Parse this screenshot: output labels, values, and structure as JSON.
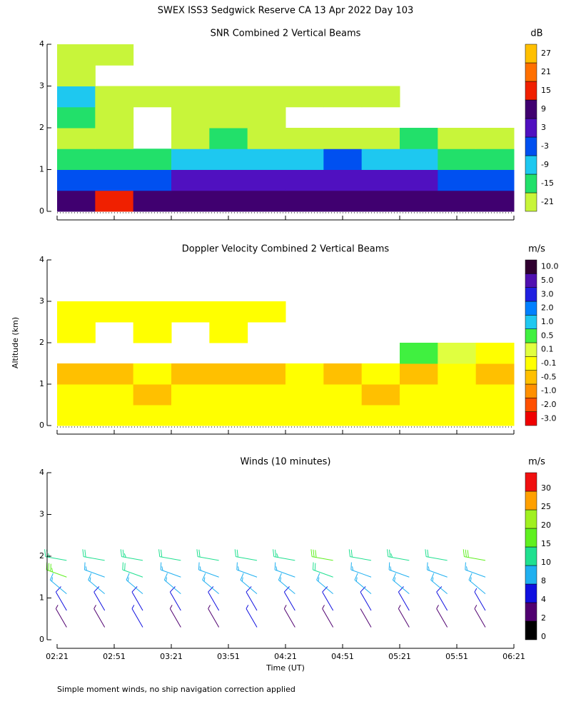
{
  "title": "SWEX ISS3 Sedgwick Reserve CA  13 Apr 2022 Day 103",
  "y_axis_label": "Altitude (km)",
  "footnote": "Simple moment winds, no ship navigation correction applied",
  "chart_data": [
    {
      "type": "heatmap",
      "title": "SNR Combined 2 Vertical Beams",
      "xlim": [
        0,
        240
      ],
      "xticks": [
        0,
        30,
        60,
        90,
        120,
        150,
        180,
        210,
        240
      ],
      "ylim": [
        0,
        4
      ],
      "yticks": [
        0,
        1,
        2,
        3,
        4
      ],
      "x": [
        10,
        30,
        50,
        70,
        90,
        110,
        130,
        150,
        170,
        190,
        210,
        230
      ],
      "y": [
        0.25,
        0.75,
        1.25,
        1.75,
        2.25,
        2.75,
        3.25,
        3.75
      ],
      "z": [
        [
          12,
          18,
          9,
          12,
          9,
          9,
          9,
          9,
          9,
          9,
          9,
          9
        ],
        [
          -3,
          -3,
          -3,
          3,
          3,
          3,
          3,
          3,
          3,
          3,
          -3,
          -3
        ],
        [
          -15,
          -15,
          -15,
          -9,
          -9,
          -9,
          -9,
          -3,
          -9,
          -9,
          -15,
          -15
        ],
        [
          -21,
          -21,
          null,
          -21,
          -15,
          -21,
          -21,
          -21,
          -21,
          -15,
          -21,
          -21
        ],
        [
          -15,
          -21,
          null,
          -21,
          -21,
          -21,
          null,
          null,
          null,
          null,
          null,
          null
        ],
        [
          -9,
          -21,
          -21,
          -21,
          -21,
          -21,
          -21,
          -21,
          -21,
          null,
          null,
          null
        ],
        [
          -21,
          null,
          null,
          null,
          null,
          null,
          null,
          null,
          null,
          null,
          null,
          null
        ],
        [
          -21,
          -21,
          null,
          null,
          null,
          null,
          null,
          null,
          null,
          null,
          null,
          null
        ]
      ],
      "colorbar": {
        "unit": "dB",
        "label_position": "center",
        "levels": [
          -21,
          -15,
          -9,
          -3,
          3,
          9,
          15,
          21,
          27
        ],
        "colors": [
          "#c8f53a",
          "#22e06a",
          "#1ec8f0",
          "#0050f0",
          "#5010c0",
          "#400070",
          "#f02000",
          "#ff7000",
          "#ffc000"
        ]
      }
    },
    {
      "type": "heatmap",
      "title": "Doppler Velocity Combined 2 Vertical Beams",
      "xlim": [
        0,
        240
      ],
      "xticks": [
        0,
        30,
        60,
        90,
        120,
        150,
        180,
        210,
        240
      ],
      "ylim": [
        0,
        4
      ],
      "yticks": [
        0,
        1,
        2,
        3,
        4
      ],
      "x": [
        10,
        30,
        50,
        70,
        90,
        110,
        130,
        150,
        170,
        190,
        210,
        230
      ],
      "y": [
        0.25,
        0.75,
        1.25,
        1.75,
        2.25,
        2.75,
        3.25,
        3.75
      ],
      "z": [
        [
          -0.1,
          -0.1,
          -0.1,
          -0.1,
          -0.1,
          -0.1,
          -0.1,
          -0.1,
          -0.1,
          -0.1,
          -0.1,
          -0.1
        ],
        [
          -0.1,
          -0.1,
          -0.5,
          -0.1,
          -0.1,
          -0.1,
          -0.1,
          -0.1,
          -0.5,
          -0.1,
          -0.1,
          -0.1
        ],
        [
          -0.5,
          -0.5,
          -0.1,
          -0.5,
          -0.5,
          -0.5,
          -0.1,
          -0.5,
          -0.1,
          -0.5,
          -0.1,
          -0.5
        ],
        [
          null,
          null,
          null,
          null,
          null,
          null,
          null,
          null,
          null,
          0.5,
          0.1,
          -0.1
        ],
        [
          -0.1,
          null,
          -0.1,
          null,
          -0.1,
          null,
          null,
          null,
          null,
          null,
          null,
          null
        ],
        [
          -0.1,
          -0.1,
          -0.1,
          -0.1,
          -0.1,
          -0.1,
          null,
          null,
          null,
          null,
          null,
          null
        ],
        [
          null,
          null,
          null,
          null,
          null,
          null,
          null,
          null,
          null,
          null,
          null,
          null
        ],
        [
          null,
          null,
          null,
          null,
          null,
          null,
          null,
          null,
          null,
          null,
          null,
          null
        ]
      ],
      "colorbar": {
        "unit": "m/s",
        "label_position": "center",
        "levels": [
          {
            "value": -3,
            "label": "-3.0"
          },
          {
            "value": -2,
            "label": "-2.0"
          },
          {
            "value": -1,
            "label": "-1.0"
          },
          -0.5,
          -0.1,
          0.1,
          0.5,
          {
            "value": 1,
            "label": "1.0"
          },
          {
            "value": 2,
            "label": "2.0"
          },
          {
            "value": 3,
            "label": "3.0"
          },
          {
            "value": 5,
            "label": "5.0"
          },
          {
            "value": 10,
            "label": "10.0"
          }
        ],
        "colors": [
          "#f00000",
          "#ff5000",
          "#ff9000",
          "#ffc000",
          "#ffff00",
          "#e0ff40",
          "#40f040",
          "#20c8f0",
          "#0080ff",
          "#2020e0",
          "#5010b0",
          "#300030"
        ]
      }
    },
    {
      "type": "barbs",
      "title": "Winds (10 minutes)",
      "x_label": "Time (UT)",
      "xlim": [
        0,
        240
      ],
      "xticks": [
        {
          "value": 0,
          "label": "02:21"
        },
        {
          "value": 30,
          "label": "02:51"
        },
        {
          "value": 60,
          "label": "03:21"
        },
        {
          "value": 90,
          "label": "03:51"
        },
        {
          "value": 120,
          "label": "04:21"
        },
        {
          "value": 150,
          "label": "04:51"
        },
        {
          "value": 180,
          "label": "05:21"
        },
        {
          "value": 210,
          "label": "05:51"
        },
        {
          "value": 240,
          "label": "06:21"
        }
      ],
      "ylim": [
        0,
        4
      ],
      "yticks": [
        0,
        1,
        2,
        3,
        4
      ],
      "x": [
        5,
        5,
        5,
        5,
        5,
        25,
        25,
        25,
        25,
        25,
        45,
        45,
        45,
        45,
        45,
        65,
        65,
        65,
        65,
        65,
        85,
        85,
        85,
        85,
        85,
        105,
        105,
        105,
        105,
        105,
        125,
        125,
        125,
        125,
        125,
        145,
        145,
        145,
        145,
        145,
        165,
        165,
        165,
        165,
        165,
        185,
        185,
        185,
        185,
        185,
        205,
        205,
        205,
        205,
        205,
        225,
        225,
        225,
        225,
        225
      ],
      "y": [
        0.3,
        0.7,
        1.1,
        1.5,
        1.9,
        0.3,
        0.7,
        1.1,
        1.5,
        1.9,
        0.3,
        0.7,
        1.1,
        1.5,
        1.9,
        0.3,
        0.7,
        1.1,
        1.5,
        1.9,
        0.3,
        0.7,
        1.1,
        1.5,
        1.9,
        0.3,
        0.7,
        1.1,
        1.5,
        1.9,
        0.3,
        0.7,
        1.1,
        1.5,
        1.9,
        0.3,
        0.7,
        1.1,
        1.5,
        1.9,
        0.3,
        0.7,
        1.1,
        1.5,
        1.9,
        0.3,
        0.7,
        1.1,
        1.5,
        1.9,
        0.3,
        0.7,
        1.1,
        1.5,
        1.9,
        0.3,
        0.7,
        1.1,
        1.5,
        1.9
      ],
      "speed": [
        3,
        6,
        9,
        18,
        14,
        3,
        5,
        9,
        9,
        12,
        4,
        6,
        9,
        10,
        13,
        3,
        6,
        8,
        9,
        11,
        3,
        5,
        9,
        9,
        12,
        4,
        7,
        9,
        9,
        12,
        3,
        5,
        8,
        9,
        13,
        3,
        6,
        9,
        12,
        16,
        2,
        5,
        8,
        9,
        12,
        3,
        5,
        9,
        9,
        14,
        3,
        6,
        9,
        9,
        12,
        3,
        4,
        8,
        9,
        16
      ],
      "direction": [
        330,
        330,
        310,
        290,
        280,
        330,
        330,
        310,
        290,
        280,
        330,
        330,
        310,
        290,
        280,
        330,
        330,
        310,
        290,
        280,
        330,
        330,
        310,
        290,
        280,
        330,
        330,
        310,
        290,
        280,
        330,
        330,
        310,
        290,
        280,
        330,
        330,
        310,
        290,
        280,
        330,
        330,
        310,
        290,
        280,
        330,
        330,
        310,
        290,
        280,
        330,
        330,
        310,
        290,
        280,
        330,
        330,
        310,
        290,
        280
      ],
      "colorbar": {
        "unit": "m/s",
        "label_position": "bottom",
        "levels": [
          0,
          2,
          4,
          8,
          10,
          15,
          20,
          25,
          30
        ],
        "colors": [
          "#000000",
          "#500070",
          "#1010e0",
          "#20b0f0",
          "#20e090",
          "#60f020",
          "#a0f020",
          "#ffa000",
          "#f01010"
        ]
      }
    }
  ]
}
